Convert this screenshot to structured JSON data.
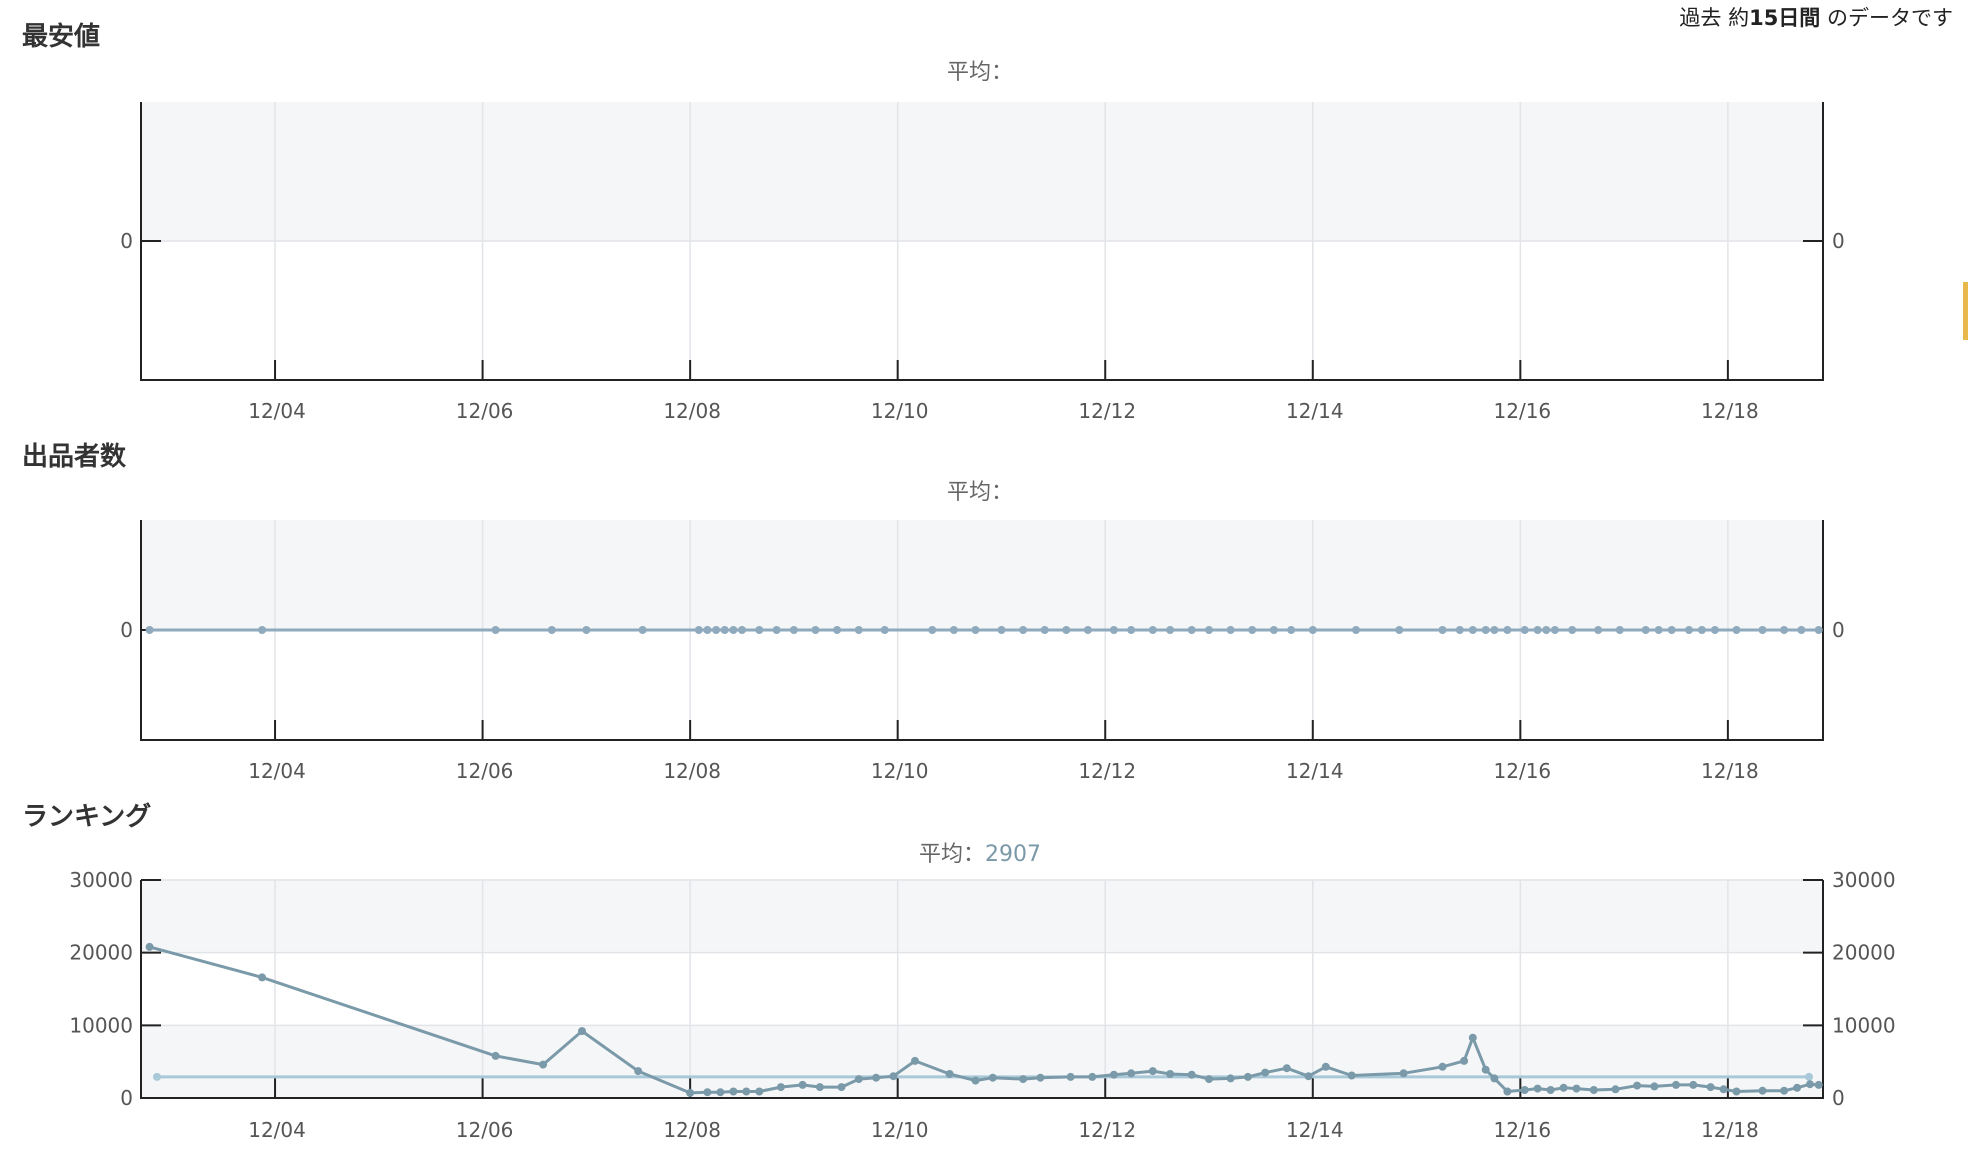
{
  "header": {
    "prefix": "過去 約",
    "days": "15日間",
    "suffix": " のデータです"
  },
  "colors": {
    "band": "#f5f6f8",
    "grid": "#e2e4e8",
    "axis": "#222222",
    "series": "#7b9aa9",
    "series_light": "#8fa9bd",
    "average": "#a9c9d8"
  },
  "chart_data": [
    {
      "type": "line",
      "title": "最安値",
      "avg_label": "平均：",
      "avg_value": "",
      "x_domain": [
        "12/02 17:00",
        "12/18 22:00"
      ],
      "x_ticks": [
        "12/04",
        "12/06",
        "12/08",
        "12/10",
        "12/12",
        "12/14",
        "12/16",
        "12/18"
      ],
      "y_ticks_left": [
        "0"
      ],
      "y_ticks_right": [
        "0"
      ],
      "ylim": [
        -1,
        1
      ],
      "grid": true,
      "series": []
    },
    {
      "type": "line",
      "title": "出品者数",
      "avg_label": "平均：",
      "avg_value": "",
      "x_domain": [
        "12/02 17:00",
        "12/18 22:00"
      ],
      "x_ticks": [
        "12/04",
        "12/06",
        "12/08",
        "12/10",
        "12/12",
        "12/14",
        "12/16",
        "12/18"
      ],
      "y_ticks_left": [
        "0"
      ],
      "y_ticks_right": [
        "0"
      ],
      "ylim": [
        -1,
        1
      ],
      "grid": true,
      "series": [
        {
          "x": [
            "12/02 19:00",
            "12/03 21:00",
            "12/06 03:00",
            "12/06 16:00",
            "12/07 00:00",
            "12/07 13:00",
            "12/08 02:00",
            "12/08 04:00",
            "12/08 06:00",
            "12/08 08:00",
            "12/08 10:00",
            "12/08 12:00",
            "12/08 16:00",
            "12/08 20:00",
            "12/09 00:00",
            "12/09 05:00",
            "12/09 10:00",
            "12/09 15:00",
            "12/09 21:00",
            "12/10 08:00",
            "12/10 13:00",
            "12/10 18:00",
            "12/11 00:00",
            "12/11 05:00",
            "12/11 10:00",
            "12/11 15:00",
            "12/11 20:00",
            "12/12 02:00",
            "12/12 06:00",
            "12/12 11:00",
            "12/12 15:00",
            "12/12 20:00",
            "12/13 00:00",
            "12/13 05:00",
            "12/13 10:00",
            "12/13 15:00",
            "12/13 19:00",
            "12/14 00:00",
            "12/14 10:00",
            "12/14 20:00",
            "12/15 06:00",
            "12/15 10:00",
            "12/15 13:00",
            "12/15 16:00",
            "12/15 18:00",
            "12/15 21:00",
            "12/16 01:00",
            "12/16 04:00",
            "12/16 06:00",
            "12/16 08:00",
            "12/16 12:00",
            "12/16 18:00",
            "12/16 23:00",
            "12/17 05:00",
            "12/17 08:00",
            "12/17 11:00",
            "12/17 15:00",
            "12/17 18:00",
            "12/17 21:00",
            "12/18 02:00",
            "12/18 08:00",
            "12/18 13:00",
            "12/18 17:00",
            "12/18 21:00"
          ],
          "y": [
            0,
            0,
            0,
            0,
            0,
            0,
            0,
            0,
            0,
            0,
            0,
            0,
            0,
            0,
            0,
            0,
            0,
            0,
            0,
            0,
            0,
            0,
            0,
            0,
            0,
            0,
            0,
            0,
            0,
            0,
            0,
            0,
            0,
            0,
            0,
            0,
            0,
            0,
            0,
            0,
            0,
            0,
            0,
            0,
            0,
            0,
            0,
            0,
            0,
            0,
            0,
            0,
            0,
            0,
            0,
            0,
            0,
            0,
            0,
            0,
            0,
            0,
            0,
            0
          ]
        }
      ]
    },
    {
      "type": "line",
      "title": "ランキング",
      "avg_label": "平均：",
      "avg_value": "2907",
      "x_domain": [
        "12/02 17:00",
        "12/18 22:00"
      ],
      "x_ticks": [
        "12/04",
        "12/06",
        "12/08",
        "12/10",
        "12/12",
        "12/14",
        "12/16",
        "12/18"
      ],
      "y_ticks_left": [
        "0",
        "10000",
        "20000",
        "30000"
      ],
      "y_ticks_right": [
        "0",
        "10000",
        "20000",
        "30000"
      ],
      "ylim": [
        0,
        30000
      ],
      "grid": true,
      "average": 2907,
      "series": [
        {
          "x": [
            "12/02 19:00",
            "12/03 21:00",
            "12/06 03:00",
            "12/06 14:00",
            "12/06 23:00",
            "12/07 12:00",
            "12/08 00:00",
            "12/08 04:00",
            "12/08 07:00",
            "12/08 10:00",
            "12/08 13:00",
            "12/08 16:00",
            "12/08 21:00",
            "12/09 02:00",
            "12/09 06:00",
            "12/09 11:00",
            "12/09 15:00",
            "12/09 19:00",
            "12/09 23:00",
            "12/10 04:00",
            "12/10 12:00",
            "12/10 18:00",
            "12/10 22:00",
            "12/11 05:00",
            "12/11 09:00",
            "12/11 16:00",
            "12/11 21:00",
            "12/12 02:00",
            "12/12 06:00",
            "12/12 11:00",
            "12/12 15:00",
            "12/12 20:00",
            "12/13 00:00",
            "12/13 05:00",
            "12/13 09:00",
            "12/13 13:00",
            "12/13 18:00",
            "12/13 23:00",
            "12/14 03:00",
            "12/14 09:00",
            "12/14 21:00",
            "12/15 06:00",
            "12/15 11:00",
            "12/15 13:00",
            "12/15 16:00",
            "12/15 18:00",
            "12/15 21:00",
            "12/16 01:00",
            "12/16 04:00",
            "12/16 07:00",
            "12/16 10:00",
            "12/16 13:00",
            "12/16 17:00",
            "12/16 22:00",
            "12/17 03:00",
            "12/17 07:00",
            "12/17 12:00",
            "12/17 16:00",
            "12/17 20:00",
            "12/17 23:00",
            "12/18 02:00",
            "12/18 08:00",
            "12/18 13:00",
            "12/18 16:00",
            "12/18 19:00",
            "12/18 21:00"
          ],
          "y": [
            20800,
            16600,
            5800,
            4600,
            9200,
            3700,
            700,
            800,
            800,
            900,
            900,
            900,
            1500,
            1800,
            1500,
            1500,
            2600,
            2800,
            3000,
            5100,
            3300,
            2400,
            2800,
            2600,
            2800,
            2900,
            2900,
            3200,
            3400,
            3700,
            3300,
            3200,
            2600,
            2700,
            2900,
            3500,
            4100,
            3000,
            4300,
            3100,
            3400,
            4300,
            5100,
            8300,
            3900,
            2700,
            900,
            1100,
            1300,
            1100,
            1400,
            1300,
            1100,
            1200,
            1700,
            1600,
            1800,
            1800,
            1500,
            1200,
            900,
            1000,
            1000,
            1400,
            1900,
            1800
          ]
        }
      ]
    }
  ]
}
